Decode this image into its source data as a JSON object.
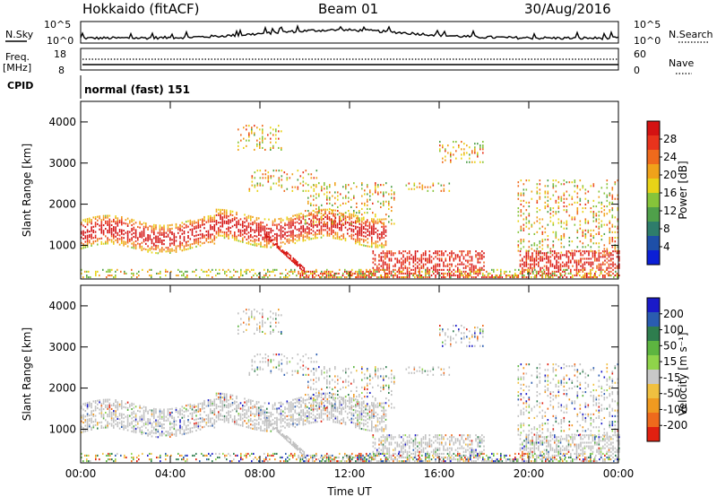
{
  "header": {
    "station": "Hokkaido (fitACF)",
    "beam": "Beam 01",
    "date": "30/Aug/2016"
  },
  "status_panels": {
    "nsky_label": "N.Sky",
    "noise_ticks": [
      "10^5",
      "10^0"
    ],
    "nsearch_label": "N.Search",
    "freq_label_1": "Freq.",
    "freq_label_2": "[MHz]",
    "freq_ticks": [
      "18",
      "8"
    ],
    "nave_ticks": [
      "60",
      "0"
    ],
    "nave_label": "Nave",
    "cpid_label": "CPID",
    "cpid_value": "normal (fast) 151"
  },
  "chart_data": [
    {
      "type": "heatmap",
      "panel": "power",
      "ylabel": "Slant Range [km]",
      "yticks": [
        1000,
        2000,
        3000,
        4000
      ],
      "ylim": [
        180,
        4500
      ],
      "xlabel": "Time UT",
      "xticks": [
        "00:00",
        "04:00",
        "08:00",
        "12:00",
        "16:00",
        "20:00",
        "00:00"
      ],
      "xlim_hours": [
        0,
        24
      ],
      "colorbar": {
        "label": "Power [dB]",
        "tick_labels": [
          "4",
          "8",
          "12",
          "16",
          "20",
          "24",
          "28"
        ],
        "colors": [
          "#0b1fd6",
          "#1e4fa8",
          "#2e7d6b",
          "#4fa04a",
          "#86c43a",
          "#e8d317",
          "#f0a21a",
          "#ef6a1c",
          "#e8331c",
          "#d41212"
        ]
      },
      "scatter_regions_description_keys": [
        {
          "t_start": 0.0,
          "t_end": 13.5,
          "range_low": 900,
          "range_high": 1700,
          "intensity": "high"
        },
        {
          "t_start": 9.5,
          "t_end": 24.0,
          "range_low": 200,
          "range_high": 900,
          "intensity": "high"
        },
        {
          "t_start": 7.5,
          "t_end": 10.5,
          "range_low": 2300,
          "range_high": 2800,
          "intensity": "medium"
        },
        {
          "t_start": 14.5,
          "t_end": 16.5,
          "range_low": 2300,
          "range_high": 2500,
          "intensity": "medium"
        },
        {
          "t_start": 19.5,
          "t_end": 24.0,
          "range_low": 800,
          "range_high": 2600,
          "intensity": "medium"
        }
      ]
    },
    {
      "type": "heatmap",
      "panel": "velocity",
      "ylabel": "Slant Range [km]",
      "yticks": [
        1000,
        2000,
        3000,
        4000
      ],
      "ylim": [
        180,
        4500
      ],
      "xlabel": "Time UT",
      "xticks": [
        "00:00",
        "04:00",
        "08:00",
        "12:00",
        "16:00",
        "20:00",
        "00:00"
      ],
      "xlim_hours": [
        0,
        24
      ],
      "colorbar": {
        "label": "Velocity [m s⁻¹]",
        "tick_labels": [
          "200",
          "100",
          "50",
          "15",
          "-15",
          "-50",
          "-100",
          "-200"
        ],
        "colors": [
          "#1a1ac8",
          "#2a5cb0",
          "#2e7d4e",
          "#5db540",
          "#8fd44a",
          "#c8c8c8",
          "#f0c040",
          "#f09a20",
          "#ef6a1c",
          "#e02010"
        ]
      },
      "ground_scatter_color": "#c0c0c0"
    }
  ]
}
